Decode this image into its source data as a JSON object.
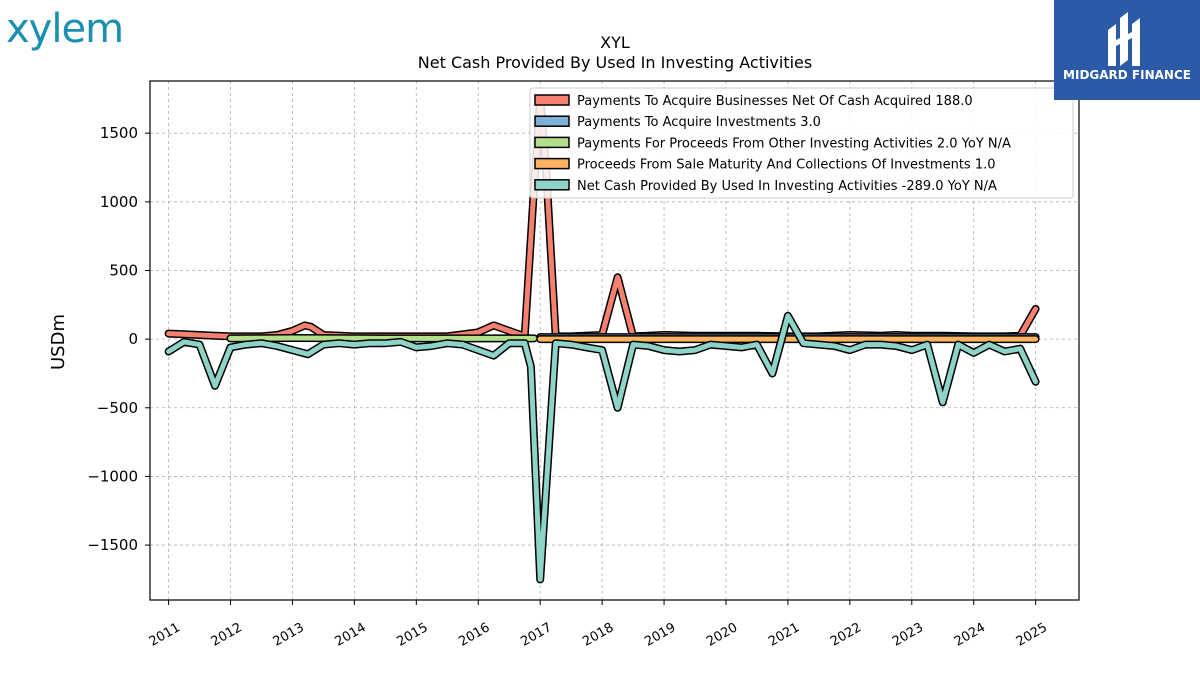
{
  "branding": {
    "left_logo_text": "xylem",
    "left_logo_color": "#1a8fb0",
    "right_logo_text": "MIDGARD FINANCE",
    "right_logo_bg": "#2a5aa8"
  },
  "chart_data": {
    "type": "line",
    "title": "XYL",
    "subtitle": "Net Cash Provided By Used In Investing Activities",
    "ylabel": "USDm",
    "xlabel": "",
    "ylim": [
      -1900,
      1880
    ],
    "xlim": [
      2010.7,
      2025.7
    ],
    "yticks": [
      -1500,
      -1000,
      -500,
      0,
      500,
      1000,
      1500
    ],
    "ytick_labels": [
      "−1500",
      "−1000",
      "−500",
      "0",
      "500",
      "1000",
      "1500"
    ],
    "xticks": [
      2011,
      2012,
      2013,
      2014,
      2015,
      2016,
      2017,
      2018,
      2019,
      2020,
      2021,
      2022,
      2023,
      2024,
      2025
    ],
    "grid": true,
    "legend_position": "top-right",
    "series": [
      {
        "name": "Payments To Acquire Businesses Net Of Cash Acquired",
        "legend_label": "Payments To Acquire Businesses Net Of Cash Acquired  188.0",
        "color": "#f4806f",
        "x": [
          2011.0,
          2011.25,
          2011.5,
          2011.75,
          2012.0,
          2012.5,
          2012.75,
          2013.0,
          2013.2,
          2013.3,
          2013.5,
          2014.0,
          2014.5,
          2015.0,
          2015.5,
          2016.0,
          2016.25,
          2016.5,
          2016.75,
          2016.9,
          2017.0,
          2017.1,
          2017.25,
          2017.5,
          2018.0,
          2018.25,
          2018.5,
          2018.75,
          2019.0,
          2019.5,
          2020.0,
          2020.5,
          2021.0,
          2021.5,
          2022.0,
          2022.5,
          2022.75,
          2023.0,
          2023.5,
          2024.0,
          2024.5,
          2024.75,
          2025.0
        ],
        "values": [
          40,
          35,
          30,
          25,
          20,
          20,
          30,
          60,
          100,
          90,
          30,
          20,
          20,
          20,
          20,
          50,
          100,
          60,
          20,
          1100,
          1750,
          1200,
          20,
          20,
          30,
          450,
          20,
          25,
          30,
          25,
          25,
          25,
          20,
          20,
          30,
          25,
          30,
          25,
          25,
          20,
          20,
          25,
          220
        ]
      },
      {
        "name": "Payments To Acquire Investments",
        "legend_label": "Payments To Acquire Investments  3.0",
        "color": "#7fb1d6",
        "x": [
          2017.0,
          2025.0
        ],
        "values": [
          15,
          15
        ]
      },
      {
        "name": "Payments For Proceeds From Other Investing Activities",
        "legend_label": "Payments For Proceeds From Other Investing Activities  2.0 YoY N/A",
        "color": "#b2df8a",
        "x": [
          2012.0,
          2013.0,
          2014.0,
          2015.0,
          2016.0,
          2016.9
        ],
        "values": [
          5,
          8,
          6,
          5,
          5,
          5
        ]
      },
      {
        "name": "Proceeds From Sale Maturity And Collections Of Investments",
        "legend_label": "Proceeds From Sale Maturity And Collections Of Investments  1.0",
        "color": "#fdb462",
        "x": [
          2017.0,
          2025.0
        ],
        "values": [
          0,
          0
        ]
      },
      {
        "name": "Net Cash Provided By Used In Investing Activities",
        "legend_label": "Net Cash Provided By Used In Investing Activities  -289.0 YoY N/A",
        "color": "#8dd3c7",
        "x": [
          2011.0,
          2011.25,
          2011.5,
          2011.75,
          2012.0,
          2012.25,
          2012.5,
          2012.75,
          2013.0,
          2013.25,
          2013.5,
          2013.75,
          2014.0,
          2014.25,
          2014.5,
          2014.75,
          2015.0,
          2015.25,
          2015.5,
          2015.75,
          2016.0,
          2016.25,
          2016.5,
          2016.75,
          2016.85,
          2017.0,
          2017.25,
          2017.5,
          2017.75,
          2018.0,
          2018.25,
          2018.5,
          2018.75,
          2019.0,
          2019.25,
          2019.5,
          2019.75,
          2020.0,
          2020.25,
          2020.5,
          2020.75,
          2021.0,
          2021.25,
          2021.5,
          2021.75,
          2022.0,
          2022.25,
          2022.5,
          2022.75,
          2023.0,
          2023.25,
          2023.5,
          2023.75,
          2024.0,
          2024.25,
          2024.5,
          2024.75,
          2025.0
        ],
        "values": [
          -90,
          -20,
          -40,
          -340,
          -60,
          -40,
          -30,
          -50,
          -80,
          -110,
          -40,
          -30,
          -40,
          -30,
          -30,
          -20,
          -60,
          -50,
          -30,
          -40,
          -80,
          -120,
          -30,
          -30,
          -200,
          -1750,
          -30,
          -40,
          -60,
          -80,
          -500,
          -40,
          -50,
          -80,
          -90,
          -80,
          -40,
          -50,
          -60,
          -40,
          -250,
          170,
          -30,
          -40,
          -50,
          -80,
          -40,
          -40,
          -50,
          -80,
          -40,
          -460,
          -40,
          -100,
          -40,
          -90,
          -70,
          -310
        ]
      }
    ]
  }
}
